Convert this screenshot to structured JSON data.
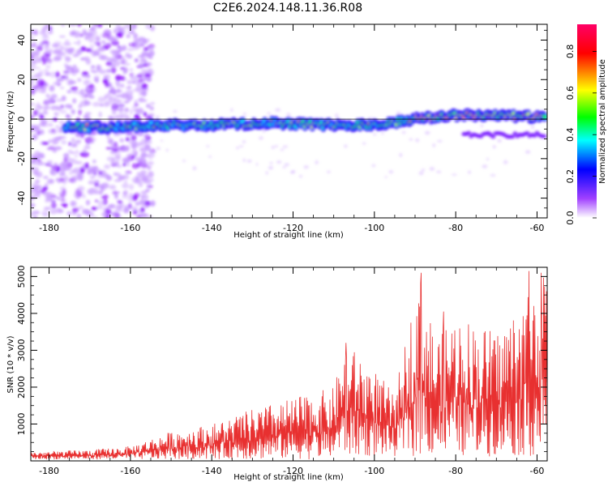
{
  "title": "C2E6.2024.148.11.36.R08",
  "chart_data": [
    {
      "type": "heatmap",
      "xlabel": "Height of straight line (km)",
      "ylabel": "Frequency (Hz)",
      "xlim": [
        -184.5,
        -57.5
      ],
      "ylim": [
        -50,
        48
      ],
      "x_ticks": [
        -180,
        -160,
        -140,
        -120,
        -100,
        -80,
        -60
      ],
      "y_ticks": [
        -40,
        -20,
        0,
        20,
        40
      ],
      "ridge": [
        [
          -176,
          -4
        ],
        [
          -165,
          -4
        ],
        [
          -150,
          -3
        ],
        [
          -140,
          -3
        ],
        [
          -125,
          -2
        ],
        [
          -110,
          -3
        ],
        [
          -100,
          -3
        ],
        [
          -90,
          0
        ],
        [
          -80,
          2
        ],
        [
          -70,
          2
        ],
        [
          -60,
          1
        ]
      ],
      "colorbar": {
        "label": "Normalized spectral amplitude",
        "range": [
          0,
          0.93
        ],
        "ticks": [
          0.0,
          0.2,
          0.4,
          0.6,
          0.8
        ],
        "colormap": [
          "#ffffff",
          "#9933ff",
          "#0000ff",
          "#00ffff",
          "#00ff00",
          "#ffff00",
          "#ff0000",
          "#ff0066"
        ]
      }
    },
    {
      "type": "line",
      "xlabel": "Height of straight line (km)",
      "ylabel": "SNR (10 * v/v)",
      "xlim": [
        -184.5,
        -57.5
      ],
      "ylim": [
        0,
        5250
      ],
      "x_ticks": [
        -180,
        -160,
        -140,
        -120,
        -100,
        -80,
        -60
      ],
      "y_ticks": [
        1000,
        2000,
        3000,
        4000,
        5000
      ],
      "color": "#e83030",
      "envelope": [
        [
          -184,
          250
        ],
        [
          -170,
          300
        ],
        [
          -160,
          400
        ],
        [
          -150,
          800
        ],
        [
          -140,
          1000
        ],
        [
          -130,
          1400
        ],
        [
          -120,
          1700
        ],
        [
          -110,
          2000
        ],
        [
          -107,
          3200
        ],
        [
          -100,
          2500
        ],
        [
          -95,
          1800
        ],
        [
          -89,
          5100
        ],
        [
          -85,
          3400
        ],
        [
          -80,
          4000
        ],
        [
          -70,
          3500
        ],
        [
          -64,
          4300
        ],
        [
          -61,
          5100
        ],
        [
          -58,
          5000
        ]
      ],
      "peaks": [
        [
          -107,
          3200
        ],
        [
          -88.5,
          5100
        ],
        [
          -83,
          4050
        ],
        [
          -62,
          5150
        ],
        [
          -59,
          5100
        ]
      ]
    }
  ]
}
